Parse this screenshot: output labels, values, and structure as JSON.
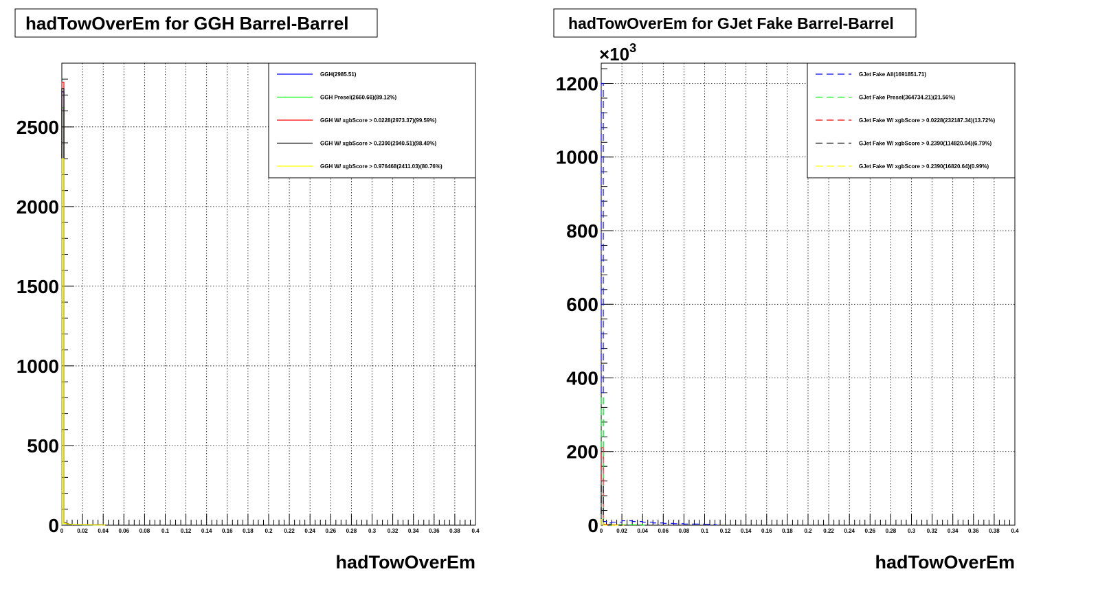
{
  "chart_data": [
    {
      "type": "line",
      "title": "hadTowOverEm for GGH Barrel-Barrel",
      "xlabel": "hadTowOverEm",
      "ylabel": "",
      "xlim": [
        0,
        0.4
      ],
      "ylim": [
        0,
        2900
      ],
      "multiplier": "",
      "grid": true,
      "legend_position": "top-right",
      "x_ticks": [
        "0",
        "0.02",
        "0.04",
        "0.06",
        "0.08",
        "0.1",
        "0.12",
        "0.14",
        "0.16",
        "0.18",
        "0.2",
        "0.22",
        "0.24",
        "0.26",
        "0.28",
        "0.3",
        "0.32",
        "0.34",
        "0.36",
        "0.38",
        "0.4"
      ],
      "y_ticks": [
        0,
        500,
        1000,
        1500,
        2000,
        2500
      ],
      "y_tick_labels": [
        "0",
        "500",
        "1000",
        "1500",
        "2000",
        "2500"
      ],
      "series": [
        {
          "name": "GGH(2985.51)",
          "color": "#0000ff",
          "dashed": false,
          "x": [
            0,
            0.002,
            0.004,
            0.006,
            0.01,
            0.02,
            0.03,
            0.04
          ],
          "y": [
            2720,
            15,
            10,
            6,
            4,
            3,
            2,
            1
          ]
        },
        {
          "name": "GGH Presel(2660.66)(89.12%)",
          "color": "#00ff00",
          "dashed": false,
          "x": [
            0,
            0.002,
            0.004,
            0.006,
            0.01,
            0.02,
            0.03,
            0.04
          ],
          "y": [
            2620,
            12,
            8,
            5,
            3,
            2,
            1,
            1
          ]
        },
        {
          "name": "GGH W/ xgbScore > 0.0228(2973.37)(99.59%)",
          "color": "#ff0000",
          "dashed": false,
          "x": [
            0,
            0.002,
            0.004,
            0.006,
            0.01,
            0.02,
            0.03,
            0.04
          ],
          "y": [
            2780,
            15,
            10,
            6,
            4,
            3,
            2,
            1
          ]
        },
        {
          "name": "GGH W/ xgbScore > 0.2390(2940.51)(98.49%)",
          "color": "#000000",
          "dashed": false,
          "x": [
            0,
            0.002,
            0.004,
            0.006,
            0.01,
            0.02,
            0.03,
            0.04
          ],
          "y": [
            2740,
            14,
            9,
            6,
            4,
            3,
            2,
            1
          ]
        },
        {
          "name": "GGH W/ xgbScore > 0.976468(2411.03)(80.76%)",
          "color": "#ffff00",
          "dashed": false,
          "x": [
            0,
            0.002,
            0.004,
            0.006,
            0.01,
            0.02,
            0.03,
            0.04
          ],
          "y": [
            2300,
            12,
            8,
            5,
            3,
            2,
            1,
            1
          ]
        }
      ]
    },
    {
      "type": "line",
      "title": "hadTowOverEm for GJet Fake Barrel-Barrel",
      "xlabel": "hadTowOverEm",
      "ylabel": "",
      "xlim": [
        0,
        0.4
      ],
      "ylim": [
        0,
        1255
      ],
      "multiplier": "×10",
      "multiplier_exp": "3",
      "grid": true,
      "legend_position": "top-right",
      "x_ticks": [
        "0",
        "0.02",
        "0.04",
        "0.06",
        "0.08",
        "0.1",
        "0.12",
        "0.14",
        "0.16",
        "0.18",
        "0.2",
        "0.22",
        "0.24",
        "0.26",
        "0.28",
        "0.3",
        "0.32",
        "0.34",
        "0.36",
        "0.38",
        "0.4"
      ],
      "y_ticks": [
        0,
        200,
        400,
        600,
        800,
        1000,
        1200
      ],
      "y_tick_labels": [
        "0",
        "200",
        "400",
        "600",
        "800",
        "1000",
        "1200"
      ],
      "series": [
        {
          "name": "GJet Fake All(1691851.71)",
          "color": "#0000ff",
          "dashed": true,
          "x": [
            0,
            0.002,
            0.006,
            0.01,
            0.02,
            0.03,
            0.04,
            0.05,
            0.06,
            0.07,
            0.08,
            0.1,
            0.11
          ],
          "y": [
            1200,
            10,
            6,
            8,
            12,
            10,
            8,
            6,
            5,
            4,
            3,
            2,
            1
          ]
        },
        {
          "name": "GJet Fake Presel(364734.21)(21.56%)",
          "color": "#00ff00",
          "dashed": true,
          "x": [
            0,
            0.002,
            0.006,
            0.01,
            0.02,
            0.04
          ],
          "y": [
            350,
            3,
            2,
            1,
            1,
            0
          ]
        },
        {
          "name": "GJet Fake W/ xgbScore > 0.0228(232187.34)(13.72%)",
          "color": "#ff0000",
          "dashed": true,
          "x": [
            0,
            0.002,
            0.006,
            0.01,
            0.02
          ],
          "y": [
            210,
            2,
            1,
            1,
            0
          ]
        },
        {
          "name": "GJet Fake W/ xgbScore > 0.2390(114820.04)(6.79%)",
          "color": "#000000",
          "dashed": true,
          "x": [
            0,
            0.002,
            0.006,
            0.01,
            0.02
          ],
          "y": [
            110,
            1,
            1,
            0,
            0
          ]
        },
        {
          "name": "GJet Fake W/ xgbScore > 0.2390(16820.64)(0.99%)",
          "color": "#ffff00",
          "dashed": true,
          "x": [
            0,
            0.002,
            0.006,
            0.01,
            0.02
          ],
          "y": [
            16,
            0,
            0,
            0,
            0
          ]
        }
      ]
    }
  ]
}
